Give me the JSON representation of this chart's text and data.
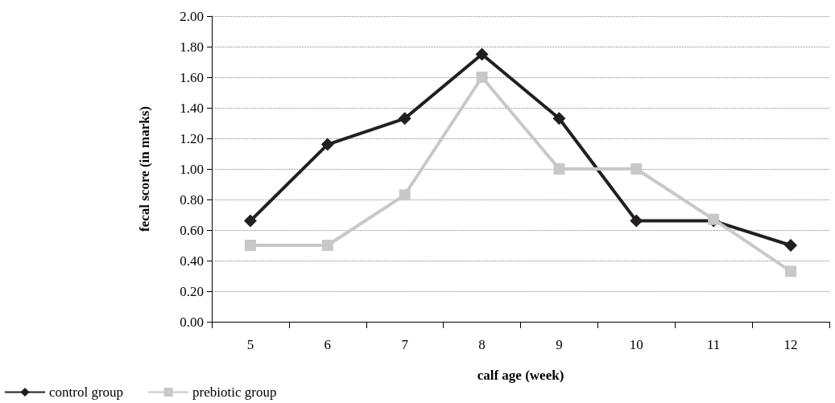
{
  "chart_data": {
    "type": "line",
    "xlabel": "calf age (week)",
    "ylabel": "fecal score (in marks)",
    "categories": [
      "5",
      "6",
      "7",
      "8",
      "9",
      "10",
      "11",
      "12"
    ],
    "series": [
      {
        "name": "control group",
        "color": "#231f20",
        "marker": "diamond",
        "values": [
          0.66,
          1.16,
          1.33,
          1.75,
          1.33,
          0.66,
          0.66,
          0.5
        ]
      },
      {
        "name": "prebiotic group",
        "color": "#c8c8c8",
        "marker": "square",
        "values": [
          0.5,
          0.5,
          0.83,
          1.6,
          1.0,
          1.0,
          0.67,
          0.33
        ]
      }
    ],
    "ylim": [
      0,
      2
    ],
    "yticks": [
      {
        "value": 0,
        "label": "0.00"
      },
      {
        "value": 0.2,
        "label": "0.20"
      },
      {
        "value": 0.4,
        "label": "0.40"
      },
      {
        "value": 0.6,
        "label": "0.60"
      },
      {
        "value": 0.8,
        "label": "0.80"
      },
      {
        "value": 1,
        "label": "1.00"
      },
      {
        "value": 1.2,
        "label": "1.20"
      },
      {
        "value": 1.4,
        "label": "1.40"
      },
      {
        "value": 1.6,
        "label": "1.60"
      },
      {
        "value": 1.8,
        "label": "1.80"
      },
      {
        "value": 2,
        "label": "2.00"
      }
    ],
    "grid": "y",
    "legend": "bottom left",
    "line_style": "solid"
  }
}
